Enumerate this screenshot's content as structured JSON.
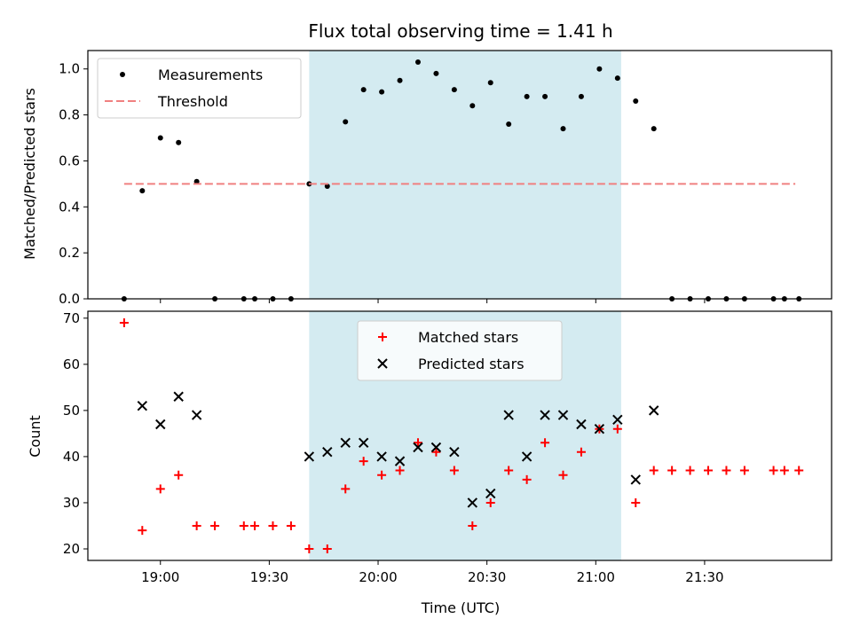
{
  "chart_data": [
    {
      "type": "scatter",
      "title": "Flux total observing time = 1.41 h",
      "xlabel": "",
      "ylabel": "Matched/Predicted stars",
      "xlim": [
        "18:40",
        "22:05"
      ],
      "ylim": [
        0,
        1.08
      ],
      "yticks": [
        "0.0",
        "0.2",
        "0.4",
        "0.6",
        "0.8",
        "1.0"
      ],
      "ytick_values": [
        0,
        0.2,
        0.4,
        0.6,
        0.8,
        1.0
      ],
      "highlight_span": {
        "start": "19:41",
        "end": "21:07",
        "color": "#d4ebf1"
      },
      "legend": {
        "placement": "top-left"
      },
      "series": [
        {
          "name": "Measurements",
          "marker": "dot",
          "color": "#000000",
          "points": [
            [
              "18:50",
              0.0
            ],
            [
              "18:55",
              0.47
            ],
            [
              "19:00",
              0.7
            ],
            [
              "19:05",
              0.68
            ],
            [
              "19:10",
              0.51
            ],
            [
              "19:15",
              0.0
            ],
            [
              "19:23",
              0.0
            ],
            [
              "19:26",
              0.0
            ],
            [
              "19:31",
              0.0
            ],
            [
              "19:36",
              0.0
            ],
            [
              "19:41",
              0.5
            ],
            [
              "19:46",
              0.49
            ],
            [
              "19:51",
              0.77
            ],
            [
              "19:56",
              0.91
            ],
            [
              "20:01",
              0.9
            ],
            [
              "20:06",
              0.95
            ],
            [
              "20:11",
              1.03
            ],
            [
              "20:16",
              0.98
            ],
            [
              "20:21",
              0.91
            ],
            [
              "20:26",
              0.84
            ],
            [
              "20:31",
              0.94
            ],
            [
              "20:36",
              0.76
            ],
            [
              "20:41",
              0.88
            ],
            [
              "20:46",
              0.88
            ],
            [
              "20:51",
              0.74
            ],
            [
              "20:56",
              0.88
            ],
            [
              "21:01",
              1.0
            ],
            [
              "21:06",
              0.96
            ],
            [
              "21:11",
              0.86
            ],
            [
              "21:16",
              0.74
            ],
            [
              "21:21",
              0.0
            ],
            [
              "21:26",
              0.0
            ],
            [
              "21:31",
              0.0
            ],
            [
              "21:36",
              0.0
            ],
            [
              "21:41",
              0.0
            ],
            [
              "21:49",
              0.0
            ],
            [
              "21:52",
              0.0
            ],
            [
              "21:56",
              0.0
            ]
          ]
        },
        {
          "name": "Threshold",
          "marker": "dashed-line",
          "color": "#f08080",
          "points": [
            [
              "18:50",
              0.5
            ],
            [
              "21:55",
              0.5
            ]
          ]
        }
      ]
    },
    {
      "type": "scatter",
      "title": "",
      "xlabel": "Time (UTC)",
      "ylabel": "Count",
      "xlim": [
        "18:40",
        "22:05"
      ],
      "ylim": [
        17.5,
        71.5
      ],
      "yticks": [
        "20",
        "30",
        "40",
        "50",
        "60",
        "70"
      ],
      "ytick_values": [
        20,
        30,
        40,
        50,
        60,
        70
      ],
      "xticks": [
        "19:00",
        "19:30",
        "20:00",
        "20:30",
        "21:00",
        "21:30"
      ],
      "highlight_span": {
        "start": "19:41",
        "end": "21:07",
        "color": "#d4ebf1"
      },
      "legend": {
        "placement": "top-center"
      },
      "series": [
        {
          "name": "Matched stars",
          "marker": "plus",
          "color": "#ff0000",
          "points": [
            [
              "18:50",
              69
            ],
            [
              "18:55",
              24
            ],
            [
              "19:00",
              33
            ],
            [
              "19:05",
              36
            ],
            [
              "19:10",
              25
            ],
            [
              "19:15",
              25
            ],
            [
              "19:23",
              25
            ],
            [
              "19:26",
              25
            ],
            [
              "19:31",
              25
            ],
            [
              "19:36",
              25
            ],
            [
              "19:41",
              20
            ],
            [
              "19:46",
              20
            ],
            [
              "19:51",
              33
            ],
            [
              "19:56",
              39
            ],
            [
              "20:01",
              36
            ],
            [
              "20:06",
              37
            ],
            [
              "20:11",
              43
            ],
            [
              "20:16",
              41
            ],
            [
              "20:21",
              37
            ],
            [
              "20:26",
              25
            ],
            [
              "20:31",
              30
            ],
            [
              "20:36",
              37
            ],
            [
              "20:41",
              35
            ],
            [
              "20:46",
              43
            ],
            [
              "20:51",
              36
            ],
            [
              "20:56",
              41
            ],
            [
              "21:01",
              46
            ],
            [
              "21:06",
              46
            ],
            [
              "21:11",
              30
            ],
            [
              "21:16",
              37
            ],
            [
              "21:21",
              37
            ],
            [
              "21:26",
              37
            ],
            [
              "21:31",
              37
            ],
            [
              "21:36",
              37
            ],
            [
              "21:41",
              37
            ],
            [
              "21:49",
              37
            ],
            [
              "21:52",
              37
            ],
            [
              "21:56",
              37
            ]
          ]
        },
        {
          "name": "Predicted stars",
          "marker": "x",
          "color": "#000000",
          "points": [
            [
              "18:55",
              51
            ],
            [
              "19:00",
              47
            ],
            [
              "19:05",
              53
            ],
            [
              "19:10",
              49
            ],
            [
              "19:41",
              40
            ],
            [
              "19:46",
              41
            ],
            [
              "19:51",
              43
            ],
            [
              "19:56",
              43
            ],
            [
              "20:01",
              40
            ],
            [
              "20:06",
              39
            ],
            [
              "20:11",
              42
            ],
            [
              "20:16",
              42
            ],
            [
              "20:21",
              41
            ],
            [
              "20:26",
              30
            ],
            [
              "20:31",
              32
            ],
            [
              "20:36",
              49
            ],
            [
              "20:41",
              40
            ],
            [
              "20:46",
              49
            ],
            [
              "20:51",
              49
            ],
            [
              "20:56",
              47
            ],
            [
              "21:01",
              46
            ],
            [
              "21:06",
              48
            ],
            [
              "21:11",
              35
            ],
            [
              "21:16",
              50
            ]
          ]
        }
      ]
    }
  ]
}
